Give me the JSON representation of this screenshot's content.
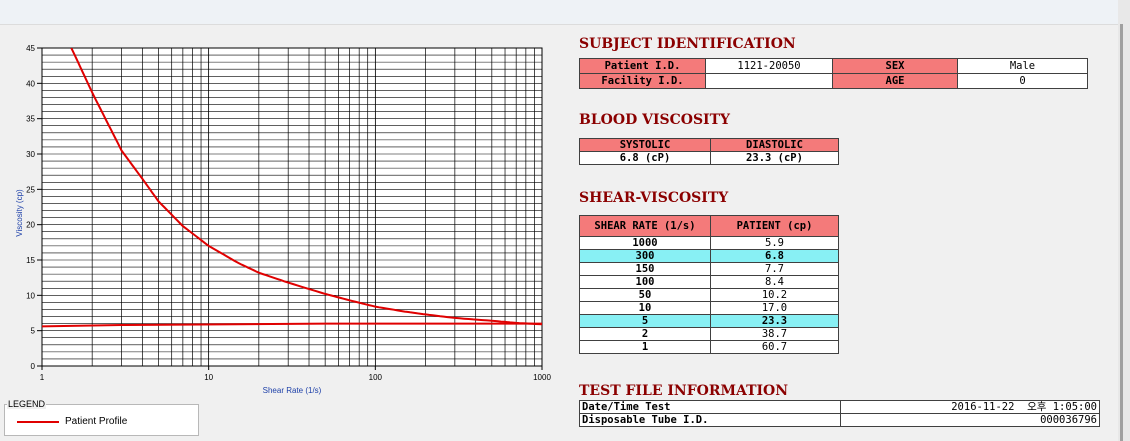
{
  "chart_data": {
    "type": "line",
    "title": "",
    "xlabel": "Shear Rate (1/s)",
    "ylabel": "Viscosity (cp)",
    "xscale": "log",
    "xlim": [
      1,
      1000
    ],
    "ylim": [
      0,
      45
    ],
    "x_ticks": [
      "1",
      "10",
      "100",
      "1000"
    ],
    "y_ticks": [
      "0",
      "5",
      "10",
      "15",
      "20",
      "25",
      "30",
      "35",
      "40",
      "45"
    ],
    "grid": true,
    "line_color": "#e00000",
    "series": [
      {
        "name": "Patient Profile",
        "x": [
          1.5,
          2,
          3,
          4,
          5,
          7,
          10,
          15,
          20,
          30,
          50,
          70,
          100,
          150,
          200,
          300,
          500,
          700,
          1000
        ],
        "y": [
          45,
          38.7,
          30.5,
          26.5,
          23.3,
          19.8,
          17.0,
          14.6,
          13.2,
          11.8,
          10.2,
          9.3,
          8.4,
          7.7,
          7.3,
          6.8,
          6.4,
          6.1,
          5.9
        ]
      },
      {
        "name": "",
        "x": [
          1,
          3,
          50,
          1000
        ],
        "y": [
          5.6,
          5.8,
          6.0,
          6.0
        ]
      }
    ]
  },
  "legend": {
    "title": "LEGEND",
    "items": [
      {
        "label": "Patient Profile",
        "color": "#e00000"
      }
    ]
  },
  "subject": {
    "title": "SUBJECT IDENTIFICATION",
    "patient_id_label": "Patient I.D.",
    "patient_id": "1121-20050",
    "sex_label": "SEX",
    "sex": "Male",
    "facility_label": "Facility I.D.",
    "facility": "",
    "age_label": "AGE",
    "age": "0"
  },
  "blood": {
    "title": "BLOOD VISCOSITY",
    "systolic_label": "SYSTOLIC",
    "diastolic_label": "DIASTOLIC",
    "systolic": "6.8 (cP)",
    "diastolic": "23.3 (cP)"
  },
  "shear": {
    "title": "SHEAR-VISCOSITY",
    "col1": "SHEAR RATE (1/s)",
    "col2": "PATIENT (cp)",
    "rows": [
      {
        "rate": "1000",
        "value": "5.9",
        "hl": false
      },
      {
        "rate": "300",
        "value": "6.8",
        "hl": true
      },
      {
        "rate": "150",
        "value": "7.7",
        "hl": false
      },
      {
        "rate": "100",
        "value": "8.4",
        "hl": false
      },
      {
        "rate": "50",
        "value": "10.2",
        "hl": false
      },
      {
        "rate": "10",
        "value": "17.0",
        "hl": false
      },
      {
        "rate": "5",
        "value": "23.3",
        "hl": true
      },
      {
        "rate": "2",
        "value": "38.7",
        "hl": false
      },
      {
        "rate": "1",
        "value": "60.7",
        "hl": false
      }
    ]
  },
  "testfile": {
    "title": "TEST FILE INFORMATION",
    "datetime_label": "Date/Time Test",
    "datetime": "2016-11-22  오후 1:05:00",
    "tube_label": "Disposable Tube I.D.",
    "tube": "000036796"
  }
}
